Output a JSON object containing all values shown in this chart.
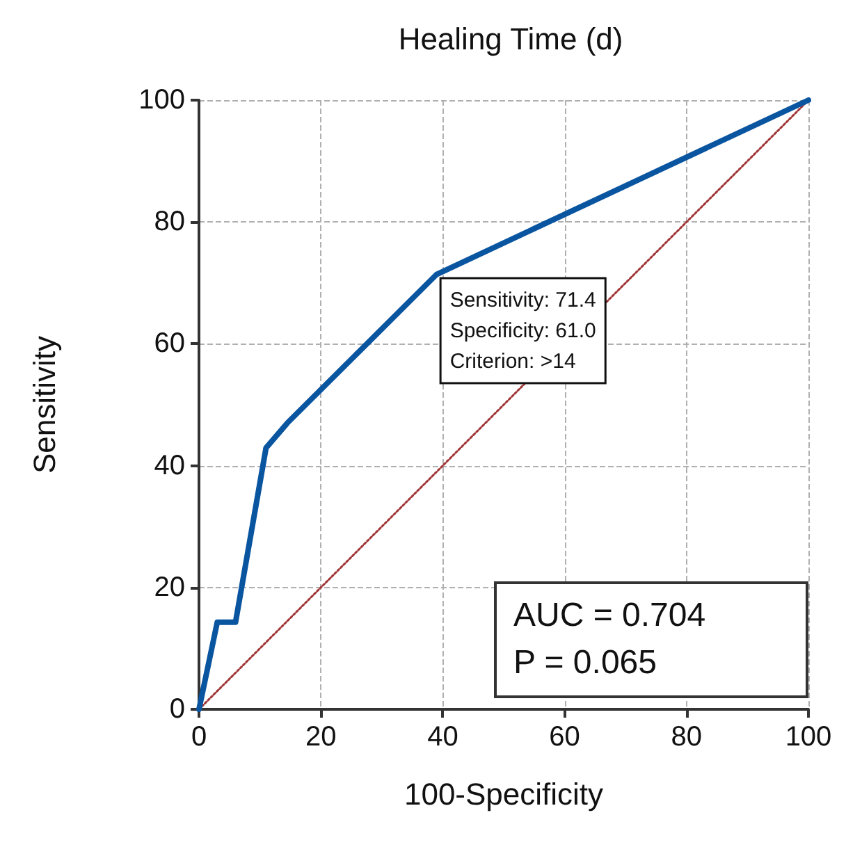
{
  "chart_data": {
    "type": "line",
    "title": "Healing Time (d)",
    "xlabel": "100-Specificity",
    "ylabel": "Sensitivity",
    "series": [
      {
        "color": "#0a55a0",
        "x": [
          0,
          3,
          6,
          11,
          14.5,
          39,
          100
        ],
        "values": [
          0,
          14.3,
          14.3,
          42.9,
          47,
          71.4,
          100
        ],
        "line_style": "solid"
      },
      {
        "color": "#a03535",
        "x": [
          0,
          100
        ],
        "values": [
          0,
          100
        ],
        "line_style": "dotted"
      }
    ],
    "xlim": [
      0,
      100
    ],
    "xticks": [
      0,
      20,
      40,
      60,
      80,
      100
    ],
    "ylim": [
      0,
      100
    ],
    "yticks": [
      0,
      20,
      40,
      60,
      80,
      100
    ],
    "grid": true,
    "marker": "none",
    "annotations": [
      {
        "text": "Sensitivity: 71.4\nSpecificity: 61.0\nCriterion: >14",
        "x": 39,
        "y": 71.4
      },
      "AUC = 0.704\nP = 0.065"
    ]
  }
}
